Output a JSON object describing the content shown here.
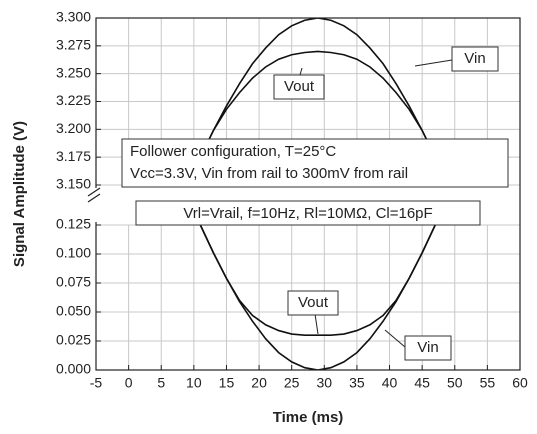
{
  "chart_data": [
    {
      "type": "line",
      "ylabel": "Signal Amplitude (V)",
      "xlim": [
        -5,
        60
      ],
      "xticks": [
        -5,
        0,
        5,
        10,
        15,
        20,
        25,
        30,
        35,
        40,
        45,
        50,
        55,
        60
      ],
      "ylim": [
        3.15,
        3.3
      ],
      "yticks": [
        {
          "value": 3.3,
          "label": "3.300"
        },
        {
          "value": 3.275,
          "label": "3.275"
        },
        {
          "value": 3.25,
          "label": "3.250"
        },
        {
          "value": 3.225,
          "label": "3.225"
        },
        {
          "value": 3.2,
          "label": "3.200"
        },
        {
          "value": 3.175,
          "label": "3.175"
        },
        {
          "value": 3.15,
          "label": "3.150"
        }
      ],
      "grid": true,
      "annotations": [
        "Follower configuration, T=25°C",
        "Vcc=3.3V, Vin from rail to 300mV from rail"
      ],
      "x": [
        9,
        11,
        13,
        15,
        17,
        19,
        21,
        23,
        25,
        27,
        29,
        31,
        33,
        35,
        37,
        39,
        41,
        43,
        45,
        47,
        49
      ],
      "series": [
        {
          "name": "Vin",
          "color": "#111111",
          "values": [
            3.15,
            3.175,
            3.199,
            3.221,
            3.241,
            3.259,
            3.273,
            3.285,
            3.293,
            3.298,
            3.3,
            3.298,
            3.293,
            3.285,
            3.273,
            3.259,
            3.241,
            3.221,
            3.199,
            3.175,
            3.15
          ]
        },
        {
          "name": "Vout",
          "color": "#111111",
          "values": [
            3.15,
            3.175,
            3.199,
            3.218,
            3.233,
            3.246,
            3.256,
            3.263,
            3.267,
            3.269,
            3.27,
            3.269,
            3.267,
            3.263,
            3.256,
            3.246,
            3.233,
            3.218,
            3.199,
            3.175,
            3.15
          ]
        }
      ]
    },
    {
      "type": "line",
      "xlabel": "Time (ms)",
      "xlim": [
        -5,
        60
      ],
      "xticks": [
        -5,
        0,
        5,
        10,
        15,
        20,
        25,
        30,
        35,
        40,
        45,
        50,
        55,
        60
      ],
      "ylim": [
        0,
        0.125
      ],
      "yticks": [
        {
          "value": 0.125,
          "label": "0.125"
        },
        {
          "value": 0.1,
          "label": "0.100"
        },
        {
          "value": 0.075,
          "label": "0.075"
        },
        {
          "value": 0.05,
          "label": "0.050"
        },
        {
          "value": 0.025,
          "label": "0.025"
        },
        {
          "value": 0,
          "label": "0.000"
        }
      ],
      "grid": true,
      "annotations": [
        "Vrl=Vrail, f=10Hz, Rl=10MΩ, Cl=16pF"
      ],
      "x": [
        11,
        13,
        15,
        17,
        19,
        21,
        23,
        25,
        27,
        29,
        31,
        33,
        35,
        37,
        39,
        41,
        43,
        45,
        47
      ],
      "series": [
        {
          "name": "Vout",
          "color": "#111111",
          "values": [
            0.125,
            0.101,
            0.079,
            0.06,
            0.047,
            0.039,
            0.034,
            0.031,
            0.03,
            0.03,
            0.03,
            0.031,
            0.034,
            0.039,
            0.047,
            0.06,
            0.079,
            0.101,
            0.125
          ]
        },
        {
          "name": "Vin",
          "color": "#111111",
          "values": [
            0.125,
            0.101,
            0.079,
            0.059,
            0.042,
            0.027,
            0.015,
            0.007,
            0.002,
            0,
            0.002,
            0.007,
            0.015,
            0.027,
            0.042,
            0.059,
            0.079,
            0.101,
            0.125
          ]
        }
      ]
    }
  ]
}
